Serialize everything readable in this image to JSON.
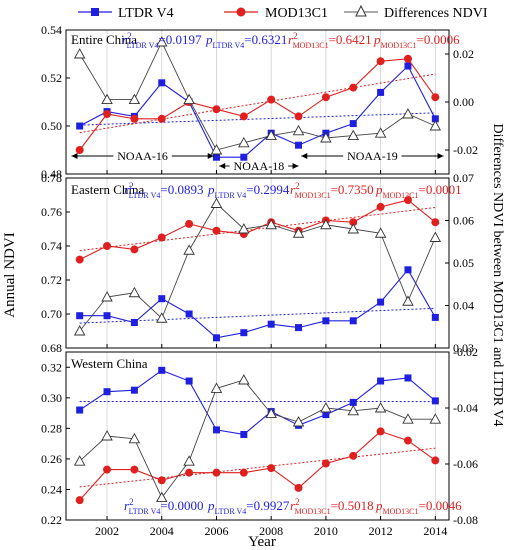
{
  "legend": [
    {
      "name": "LTDR V4",
      "color": "#1f1fe0",
      "marker": "square"
    },
    {
      "name": "MOD13C1",
      "color": "#e01f1f",
      "marker": "circle"
    },
    {
      "name": "Differences NDVI",
      "color": "#555555",
      "marker": "triangle"
    }
  ],
  "y_left_label": "Annual NDVI",
  "y_right_label": "Differences NDVI between MOD13C1 and LTDR V4",
  "x_label": "Year",
  "chart_data": [
    {
      "type": "line",
      "panel_title": "Entire China",
      "x": [
        2001,
        2002,
        2003,
        2004,
        2005,
        2006,
        2007,
        2008,
        2009,
        2010,
        2011,
        2012,
        2013,
        2014
      ],
      "xticks": [
        2002,
        2004,
        2006,
        2008,
        2010,
        2012,
        2014
      ],
      "ylim_left": [
        0.48,
        0.54
      ],
      "yticks_left": [
        0.48,
        0.5,
        0.52,
        0.54
      ],
      "ylim_right": [
        -0.03,
        0.03
      ],
      "yticks_right": [
        -0.02,
        0.0,
        0.02
      ],
      "yticks_right_labels": [
        "-0.02",
        "0.00",
        "0.02"
      ],
      "series": [
        {
          "name": "LTDR V4",
          "values": [
            0.5,
            0.506,
            0.504,
            0.518,
            0.51,
            0.487,
            0.487,
            0.497,
            0.492,
            0.497,
            0.501,
            0.514,
            0.525,
            0.503
          ]
        },
        {
          "name": "MOD13C1",
          "values": [
            0.49,
            0.505,
            0.503,
            0.503,
            0.51,
            0.507,
            0.504,
            0.511,
            0.504,
            0.512,
            0.516,
            0.527,
            0.528,
            0.512
          ]
        },
        {
          "name": "Differences NDVI",
          "values": [
            0.02,
            0.001,
            0.001,
            0.025,
            0.001,
            -0.02,
            -0.017,
            -0.014,
            -0.012,
            -0.015,
            -0.014,
            -0.013,
            -0.005,
            -0.01
          ]
        }
      ],
      "stats": {
        "ltdr_r2": "=0.0197",
        "ltdr_p": "=0.6321",
        "mod_r2": "=0.6421",
        "mod_p": "=0.0006"
      },
      "annotations": [
        {
          "text": "NOAA-16",
          "from": 2000.7,
          "to": 2005.9
        },
        {
          "text": "NOAA-18",
          "from": 2006.1,
          "to": 2009.0
        },
        {
          "text": "NOAA-19",
          "from": 2009.1,
          "to": 2014.3
        }
      ]
    },
    {
      "type": "line",
      "panel_title": "Eastern China",
      "x": [
        2001,
        2002,
        2003,
        2004,
        2005,
        2006,
        2007,
        2008,
        2009,
        2010,
        2011,
        2012,
        2013,
        2014
      ],
      "xticks": [
        2002,
        2004,
        2006,
        2008,
        2010,
        2012,
        2014
      ],
      "ylim_left": [
        0.68,
        0.78
      ],
      "yticks_left": [
        0.68,
        0.7,
        0.72,
        0.74,
        0.76,
        0.78
      ],
      "ylim_right": [
        0.03,
        0.07
      ],
      "yticks_right": [
        0.03,
        0.04,
        0.05,
        0.06,
        0.07
      ],
      "yticks_right_labels": [
        "0.03",
        "0.04",
        "0.05",
        "0.06",
        "0.07"
      ],
      "series": [
        {
          "name": "LTDR V4",
          "values": [
            0.699,
            0.699,
            0.695,
            0.709,
            0.7,
            0.686,
            0.689,
            0.694,
            0.692,
            0.696,
            0.696,
            0.707,
            0.726,
            0.698
          ]
        },
        {
          "name": "MOD13C1",
          "values": [
            0.732,
            0.74,
            0.738,
            0.745,
            0.753,
            0.749,
            0.747,
            0.754,
            0.749,
            0.755,
            0.754,
            0.763,
            0.767,
            0.754
          ]
        },
        {
          "name": "Differences NDVI",
          "values": [
            0.034,
            0.042,
            0.043,
            0.037,
            0.053,
            0.064,
            0.058,
            0.059,
            0.057,
            0.059,
            0.058,
            0.057,
            0.041,
            0.056
          ]
        }
      ],
      "stats": {
        "ltdr_r2": "=0.0893",
        "ltdr_p": "=0.2994",
        "mod_r2": "=0.7350",
        "mod_p": "=0.0001"
      }
    },
    {
      "type": "line",
      "panel_title": "Western China",
      "x": [
        2001,
        2002,
        2003,
        2004,
        2005,
        2006,
        2007,
        2008,
        2009,
        2010,
        2011,
        2012,
        2013,
        2014
      ],
      "xticks": [
        2002,
        2004,
        2006,
        2008,
        2010,
        2012,
        2014
      ],
      "xticks_labels": [
        "2002",
        "2004",
        "2006",
        "2008",
        "2010",
        "2012",
        "2014"
      ],
      "ylim_left": [
        0.22,
        0.33
      ],
      "yticks_left": [
        0.22,
        0.24,
        0.26,
        0.28,
        0.3,
        0.32
      ],
      "ylim_right": [
        -0.08,
        -0.02
      ],
      "yticks_right": [
        -0.08,
        -0.06,
        -0.04,
        -0.02
      ],
      "yticks_right_labels": [
        "-0.08",
        "-0.06",
        "-0.04",
        "-0.02"
      ],
      "series": [
        {
          "name": "LTDR V4",
          "values": [
            0.292,
            0.304,
            0.305,
            0.318,
            0.311,
            0.279,
            0.276,
            0.291,
            0.282,
            0.289,
            0.297,
            0.311,
            0.313,
            0.298
          ]
        },
        {
          "name": "MOD13C1",
          "values": [
            0.233,
            0.253,
            0.253,
            0.246,
            0.251,
            0.251,
            0.251,
            0.254,
            0.241,
            0.257,
            0.262,
            0.278,
            0.272,
            0.259
          ]
        },
        {
          "name": "Differences NDVI",
          "values": [
            -0.059,
            -0.05,
            -0.051,
            -0.072,
            -0.059,
            -0.033,
            -0.03,
            -0.042,
            -0.045,
            -0.04,
            -0.041,
            -0.04,
            -0.044,
            -0.044
          ]
        }
      ],
      "stats": {
        "ltdr_r2": "=0.0000",
        "ltdr_p": "=0.9927",
        "mod_r2": "=0.5018",
        "mod_p": "=0.0046"
      }
    }
  ]
}
